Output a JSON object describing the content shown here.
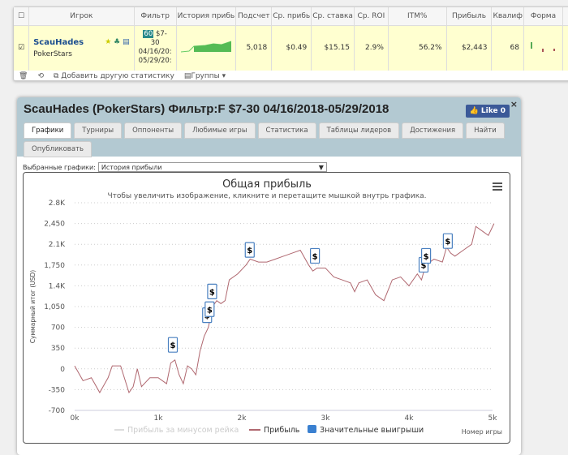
{
  "table": {
    "headers": [
      "Игрок",
      "Фильтр",
      "История прибь",
      "Подсчет",
      "Ср. прибь",
      "Ср. ставка",
      "Ср. ROI",
      "ITM%",
      "Прибыль",
      "Квалиф",
      "Форма"
    ],
    "row": {
      "player": "ScauHades",
      "network": "PokerStars",
      "filter_badge": "60",
      "filter_text": [
        "$7-",
        "30",
        "04/16/20:",
        "05/29/20:"
      ],
      "count": "5,018",
      "avg_profit": "$0.49",
      "avg_stake": "$15.15",
      "avg_roi": "2.9%",
      "itm": "56.2%",
      "profit": "$2,443",
      "qual": "68"
    },
    "footer": {
      "add_stat": "Добавить другую статистику",
      "groups": "Группы"
    }
  },
  "modal": {
    "title": "ScauHades (PokerStars) Фильтр:F $7-30 04/16/2018-05/29/2018",
    "like": "Like 0",
    "close": "×",
    "tabs": [
      "Графики",
      "Турниры",
      "Оппоненты",
      "Любимые игры",
      "Статистика",
      "Таблицы лидеров",
      "Достижения",
      "Найти",
      "Опубликовать"
    ],
    "select_label": "Выбранные графики:",
    "select_value": "История прибыли"
  },
  "chart_data": {
    "type": "line",
    "title": "Общая прибыль",
    "subtitle": "Чтобы увеличить изображение, кликните и перетащите мышкой внутрь графика.",
    "xlabel": "Номер игры",
    "ylabel": "Суммарный итог (USD)",
    "xlim": [
      0,
      5000
    ],
    "ylim": [
      -700,
      2800
    ],
    "xticks": [
      "0k",
      "1k",
      "2k",
      "3k",
      "4k",
      "5k"
    ],
    "yticks": [
      "2.8K",
      "2,450",
      "2.1K",
      "1,750",
      "1.4K",
      "1,050",
      "700",
      "350",
      "0",
      "-350",
      "-700"
    ],
    "legend": [
      "Прибыль за минусом рейка",
      "Прибыль",
      "Значительные выигрыши"
    ],
    "legend_placement": "bottom",
    "line_color": "#b06870",
    "series": [
      {
        "name": "Прибыль",
        "x": [
          0,
          100,
          200,
          300,
          400,
          450,
          500,
          550,
          650,
          700,
          750,
          800,
          900,
          1000,
          1100,
          1150,
          1200,
          1250,
          1300,
          1350,
          1400,
          1450,
          1500,
          1550,
          1600,
          1650,
          1700,
          1750,
          1800,
          1850,
          1950,
          2050,
          2100,
          2200,
          2300,
          2400,
          2500,
          2600,
          2700,
          2800,
          2850,
          2900,
          3000,
          3100,
          3200,
          3300,
          3350,
          3400,
          3500,
          3600,
          3700,
          3800,
          3900,
          4000,
          4100,
          4150,
          4200,
          4300,
          4400,
          4450,
          4500,
          4550,
          4650,
          4750,
          4800,
          4900,
          4950,
          5018
        ],
        "y": [
          50,
          -200,
          -150,
          -400,
          -150,
          50,
          50,
          50,
          -400,
          -300,
          0,
          -300,
          -150,
          -150,
          -250,
          100,
          150,
          -100,
          -250,
          50,
          0,
          -100,
          300,
          550,
          700,
          1050,
          1150,
          1100,
          1150,
          1500,
          1600,
          1750,
          1850,
          1800,
          1800,
          1850,
          1900,
          1950,
          2000,
          1750,
          1650,
          1700,
          1700,
          1550,
          1500,
          1450,
          1300,
          1450,
          1500,
          1250,
          1150,
          1500,
          1550,
          1400,
          1600,
          1500,
          1750,
          1850,
          1800,
          2050,
          1950,
          1900,
          2000,
          2100,
          2400,
          2300,
          2250,
          2450
        ]
      }
    ],
    "big_wins": {
      "x": [
        1170,
        1580,
        1610,
        1640,
        2090,
        2870,
        4170,
        4200,
        4460
      ],
      "y": [
        200,
        700,
        800,
        1100,
        1800,
        1700,
        1550,
        1700,
        1950
      ],
      "label": "$"
    }
  }
}
